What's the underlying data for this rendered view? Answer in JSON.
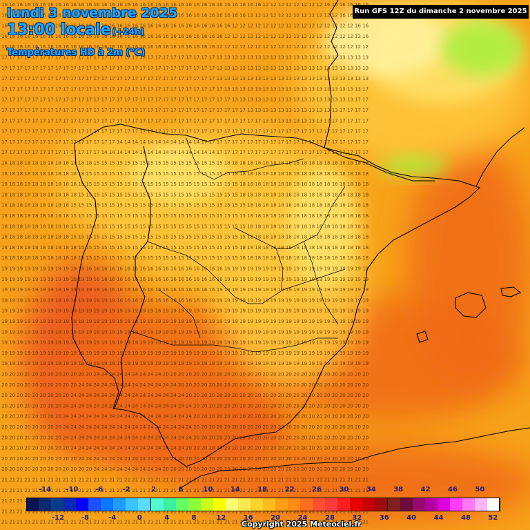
{
  "header": {
    "date": "lundi 3 novembre 2025",
    "time": "13:00 locale",
    "lead": "(+24h)",
    "variable": "Températures HD à 2m (°C)",
    "run": "Run GFS 12Z du dimanche 2 novembre 2025"
  },
  "footer": {
    "copyright": "Copyright 2025 Meteociel.fr"
  },
  "legend": {
    "labels_top": [
      "-14",
      "-10",
      "-6",
      "-2",
      "2",
      "6",
      "10",
      "14",
      "18",
      "22",
      "26",
      "30",
      "34",
      "38",
      "42",
      "46",
      "50"
    ],
    "labels_bottom": [
      "-12",
      "-8",
      "-4",
      "0",
      "4",
      "8",
      "12",
      "16",
      "20",
      "24",
      "28",
      "32",
      "36",
      "40",
      "44",
      "48",
      "52"
    ],
    "colors": [
      "#0a1450",
      "#0a2a70",
      "#0a3c8c",
      "#0a28b4",
      "#0000ff",
      "#1e50ff",
      "#0a78ff",
      "#1e9bff",
      "#3cc3ff",
      "#5adcff",
      "#50ffd2",
      "#3cf0a0",
      "#64ff64",
      "#8cff3c",
      "#c8ff1e",
      "#ffff00",
      "#ffff78",
      "#ffe850",
      "#ffd22d",
      "#ffbe1e",
      "#ffa014",
      "#ff8c14",
      "#ff6e1e",
      "#ff5032",
      "#ff3c3c",
      "#ff1e1e",
      "#e60000",
      "#c80000",
      "#a00a0a",
      "#821e1e",
      "#6e0a3c",
      "#960a6e",
      "#b400a0",
      "#dc00dc",
      "#ff3cff",
      "#ff78ff",
      "#ffb4ff",
      "#ffffff"
    ]
  },
  "map_colors": {
    "sea": "#f7a21a",
    "warm": "#f06a18",
    "hot": "#ec5420",
    "cool": "#ffc83c",
    "cooler": "#ffe36a",
    "cold": "#fff2a0",
    "green": "#a8f03c",
    "border": "#000000",
    "value_text": "#3a2a00"
  }
}
